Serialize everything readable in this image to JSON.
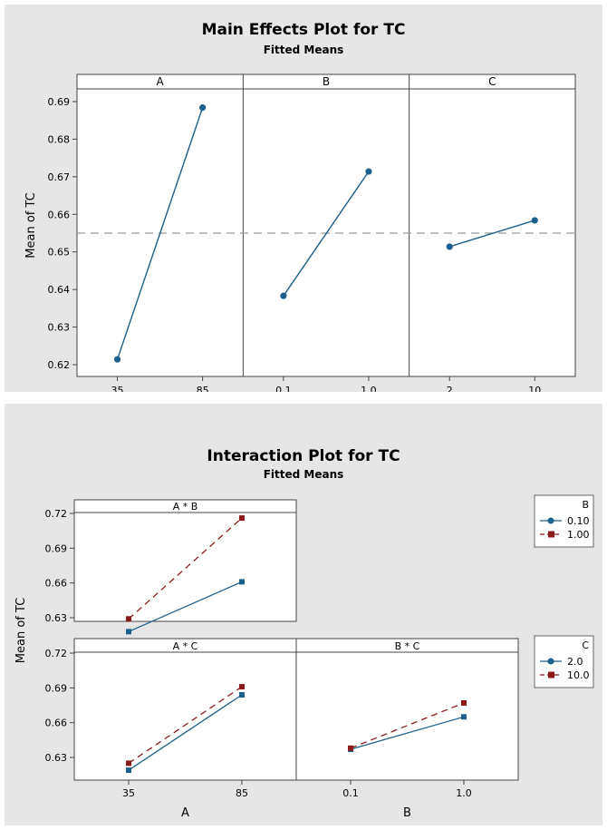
{
  "main_effects": {
    "title": "Main Effects Plot for TC",
    "subtitle": "Fitted Means",
    "ylabel": "Mean of TC"
  },
  "interaction": {
    "title": "Interaction Plot for TC",
    "subtitle": "Fitted Means",
    "ylabel": "Mean of TC",
    "xlabels": [
      "A",
      "B"
    ],
    "legends": [
      {
        "title": "B",
        "entries": [
          "0.10",
          "1.00"
        ]
      },
      {
        "title": "C",
        "entries": [
          "2.0",
          "10.0"
        ]
      }
    ]
  },
  "colors": {
    "panel_bg": "#e6e6e6",
    "plot_bg": "#ffffff",
    "series1": "#1f5f8b",
    "series2": "#8b1a1a",
    "reference": "#999999"
  },
  "chart_data": [
    {
      "type": "line",
      "title": "Main Effects Plot for TC",
      "subtitle": "Fitted Means",
      "ylabel": "Mean of TC",
      "ylim": [
        0.62,
        0.69
      ],
      "yticks": [
        0.62,
        0.63,
        0.64,
        0.65,
        0.66,
        0.67,
        0.68,
        0.69
      ],
      "reference_line": 0.655,
      "panels": [
        {
          "factor": "A",
          "categories": [
            "35",
            "85"
          ],
          "values": [
            0.6214,
            0.6884
          ]
        },
        {
          "factor": "B",
          "categories": [
            "0.1",
            "1.0"
          ],
          "values": [
            0.6383,
            0.6714
          ]
        },
        {
          "factor": "C",
          "categories": [
            "2",
            "10"
          ],
          "values": [
            0.6514,
            0.6584
          ]
        }
      ]
    },
    {
      "type": "line",
      "title": "Interaction Plot for TC",
      "subtitle": "Fitted Means",
      "ylabel": "Mean of TC",
      "ylim": [
        0.62,
        0.72
      ],
      "yticks": [
        0.63,
        0.66,
        0.69,
        0.72
      ],
      "panels": [
        {
          "label": "A * B",
          "categories": [
            "35",
            "85"
          ],
          "series": [
            {
              "name": "0.10",
              "values": [
                0.618,
                0.661
              ]
            },
            {
              "name": "1.00",
              "values": [
                0.629,
                0.716
              ]
            }
          ]
        },
        {
          "label": "A * C",
          "categories": [
            "35",
            "85"
          ],
          "series": [
            {
              "name": "2.0",
              "values": [
                0.619,
                0.684
              ]
            },
            {
              "name": "10.0",
              "values": [
                0.625,
                0.691
              ]
            }
          ]
        },
        {
          "label": "B * C",
          "categories": [
            "0.1",
            "1.0"
          ],
          "series": [
            {
              "name": "2.0",
              "values": [
                0.637,
                0.665
              ]
            },
            {
              "name": "10.0",
              "values": [
                0.638,
                0.677
              ]
            }
          ]
        }
      ]
    }
  ]
}
